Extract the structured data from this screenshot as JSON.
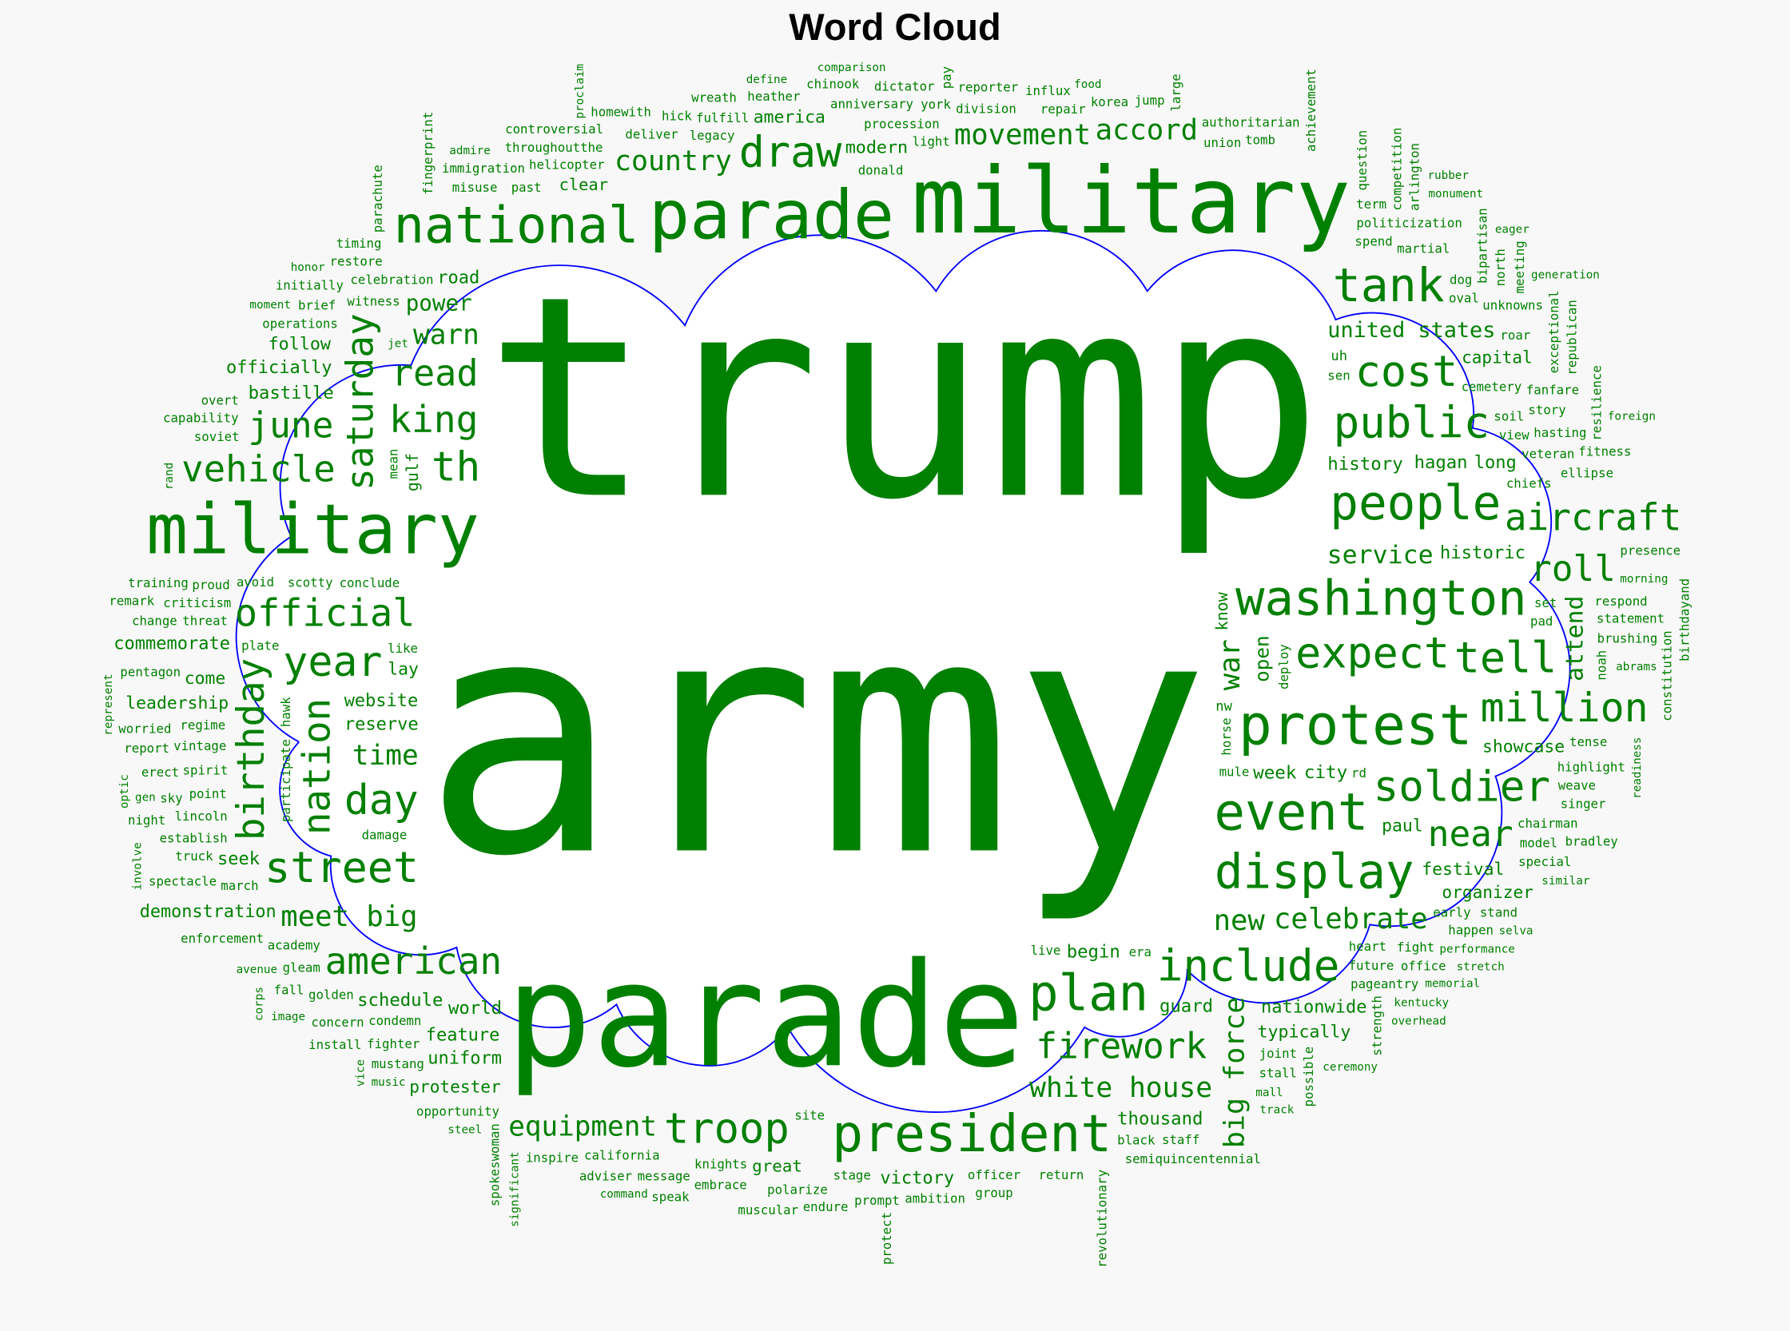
{
  "chart_data": {
    "type": "wordcloud",
    "title": "Word Cloud",
    "colors": {
      "words": "#008000",
      "outline": "#0000ff",
      "background": "#f8f8f8"
    },
    "shape": "cloud",
    "words": [
      "trump",
      "army",
      "parade",
      "military",
      "military",
      "parade",
      "national",
      "draw",
      "tank",
      "accord",
      "public",
      "cost",
      "people",
      "aircraft",
      "washington",
      "expect",
      "tell",
      "near",
      "protest",
      "soldier",
      "event",
      "display",
      "include",
      "new",
      "president",
      "plan",
      "troop",
      "white house",
      "equipment",
      "firework",
      "american",
      "street",
      "meet big",
      "schedule",
      "year",
      "official",
      "vehicle",
      "june",
      "th",
      "warn",
      "power",
      "follow",
      "officially",
      "bastille",
      "country",
      "read",
      "king",
      "million",
      "movement",
      "united states",
      "modern",
      "service",
      "roll",
      "showcase",
      "website",
      "commemorate",
      "lay",
      "time",
      "day",
      "feature",
      "uniform",
      "protester",
      "celebrate",
      "organizer",
      "week",
      "typically",
      "nationwide",
      "thousand",
      "victory",
      "world",
      "great",
      "history",
      "city",
      "historic",
      "paul",
      "festival",
      "capital",
      "long",
      "hagan",
      "begin",
      "guard",
      "leadership",
      "come",
      "seek",
      "reserve",
      "demonstration",
      "celebration",
      "clear",
      "america",
      "road",
      "birthday",
      "nation",
      "saturday",
      "big force",
      "war",
      "attend",
      "know",
      "gulf",
      "open",
      "division",
      "spend",
      "union",
      "authoritarian",
      "donald",
      "repair",
      "light",
      "procession",
      "sen",
      "tomb",
      "politicization",
      "martial",
      "legacy",
      "anniversary",
      "york",
      "admire",
      "deliver",
      "fulfill",
      "helicopter",
      "heather",
      "chinook",
      "witness",
      "operations",
      "jet",
      "moment",
      "brief",
      "conclude",
      "past",
      "misuse",
      "hick",
      "restore",
      "honor",
      "throughoutthe",
      "scotty",
      "soviet",
      "initially",
      "avoid",
      "immigration",
      "capability",
      "overt",
      "like",
      "proud",
      "criticism",
      "controversial",
      "homewith",
      "threat",
      "training",
      "change",
      "remark",
      "pentagon",
      "regime",
      "vintage",
      "damage",
      "plate",
      "spirit",
      "point",
      "lincoln",
      "worried",
      "erect",
      "establish",
      "march",
      "report",
      "sky",
      "gen",
      "truck",
      "night",
      "academy",
      "gleam",
      "condemn",
      "golden",
      "spectacle",
      "enforcement",
      "avenue",
      "image",
      "music",
      "fighter",
      "steel",
      "opportunity",
      "command",
      "knights",
      "stage",
      "site",
      "polarize",
      "officer",
      "return",
      "ambition",
      "california",
      "mustang",
      "concern",
      "message",
      "fall",
      "install",
      "inspire",
      "embrace",
      "prompt",
      "endure",
      "adviser",
      "speak",
      "muscular",
      "black",
      "group",
      "live",
      "heart",
      "future",
      "kentucky",
      "joint",
      "stall",
      "semiquincentennial",
      "staff",
      "mall",
      "track",
      "ceremony",
      "pageantry",
      "performance",
      "memorial",
      "overhead",
      "stretch",
      "early",
      "fight",
      "chairman",
      "model",
      "similar",
      "mule",
      "tense",
      "chiefs",
      "highlight",
      "nw",
      "rd",
      "weave",
      "singer",
      "special",
      "bradley",
      "stand",
      "happen",
      "morning",
      "respond",
      "abrams",
      "generation",
      "monument",
      "oval",
      "eager",
      "rubber",
      "cemetery",
      "soil",
      "view",
      "veteran",
      "hasting",
      "foreign",
      "story",
      "ellipse",
      "fitness",
      "fanfare",
      "statement",
      "presence",
      "korea",
      "jump",
      "uh",
      "reporter",
      "food",
      "term",
      "dog",
      "roar",
      "set",
      "unknowns",
      "pad",
      "brushing",
      "office",
      "selva",
      "era",
      "dictator",
      "define",
      "comparison",
      "wreath",
      "influx",
      "timing",
      "pay",
      "proclaim",
      "achievement",
      "parachute",
      "mean",
      "rand",
      "hawk",
      "optic",
      "participate",
      "involve",
      "represent",
      "corps",
      "vice",
      "spokeswoman",
      "significant",
      "protect",
      "revolutionary",
      "possible",
      "strength",
      "deploy",
      "horse",
      "question",
      "competition",
      "large",
      "bipartisan",
      "exceptional",
      "north",
      "republican",
      "arlington",
      "noah",
      "fingerprint",
      "resilience",
      "constitution",
      "birthdayand",
      "readiness",
      "meeting"
    ]
  }
}
